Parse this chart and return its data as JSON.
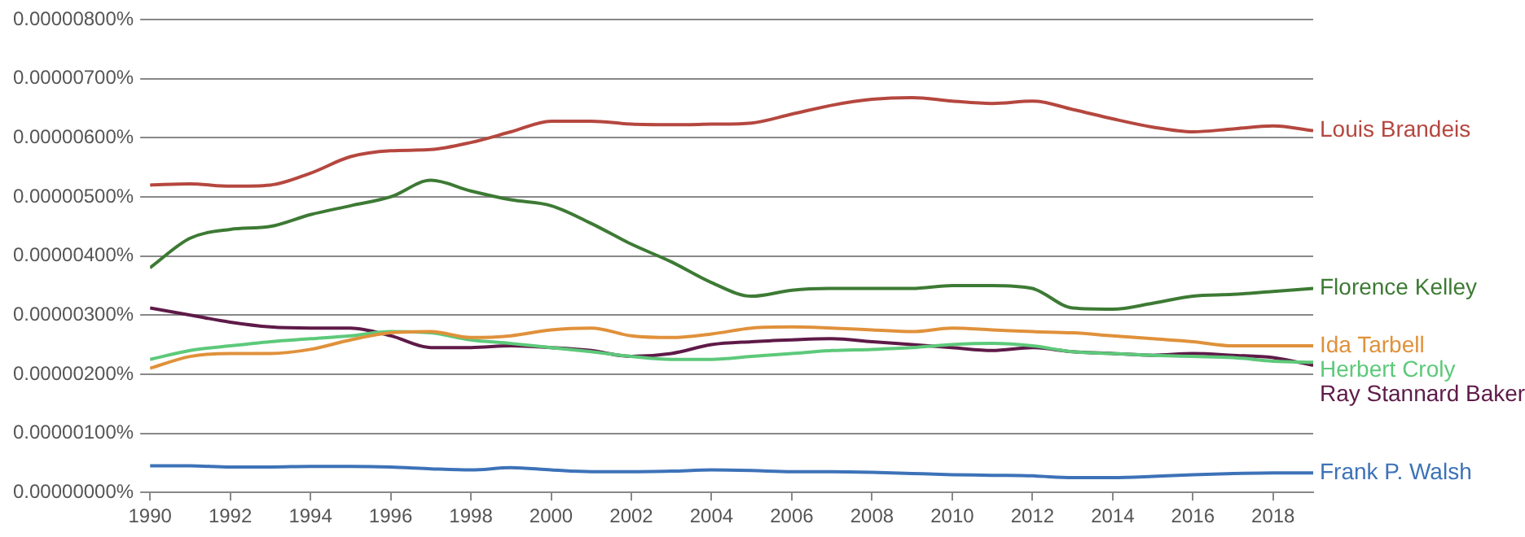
{
  "chart_data": {
    "type": "line",
    "x": [
      1990,
      1991,
      1992,
      1993,
      1994,
      1995,
      1996,
      1997,
      1998,
      1999,
      2000,
      2001,
      2002,
      2003,
      2004,
      2005,
      2006,
      2007,
      2008,
      2009,
      2010,
      2011,
      2012,
      2013,
      2014,
      2015,
      2016,
      2017,
      2018,
      2019
    ],
    "series": [
      {
        "name": "Louis Brandeis",
        "color": "#b5473f",
        "values": [
          5.2e-06,
          5.22e-06,
          5.18e-06,
          5.2e-06,
          5.4e-06,
          5.68e-06,
          5.78e-06,
          5.8e-06,
          5.92e-06,
          6.1e-06,
          6.28e-06,
          6.28e-06,
          6.23e-06,
          6.22e-06,
          6.23e-06,
          6.25e-06,
          6.4e-06,
          6.55e-06,
          6.65e-06,
          6.68e-06,
          6.62e-06,
          6.58e-06,
          6.62e-06,
          6.48e-06,
          6.32e-06,
          6.18e-06,
          6.1e-06,
          6.15e-06,
          6.2e-06,
          6.12e-06
        ]
      },
      {
        "name": "Florence Kelley",
        "color": "#3d7a34",
        "values": [
          3.8e-06,
          4.3e-06,
          4.45e-06,
          4.5e-06,
          4.7e-06,
          4.85e-06,
          5e-06,
          5.28e-06,
          5.1e-06,
          4.95e-06,
          4.85e-06,
          4.55e-06,
          4.2e-06,
          3.9e-06,
          3.55e-06,
          3.32e-06,
          3.42e-06,
          3.45e-06,
          3.45e-06,
          3.45e-06,
          3.5e-06,
          3.5e-06,
          3.45e-06,
          3.12e-06,
          3.1e-06,
          3.2e-06,
          3.32e-06,
          3.35e-06,
          3.4e-06,
          3.45e-06
        ]
      },
      {
        "name": "Ida Tarbell",
        "color": "#e0913b",
        "values": [
          2.1e-06,
          2.3e-06,
          2.35e-06,
          2.35e-06,
          2.42e-06,
          2.58e-06,
          2.7e-06,
          2.72e-06,
          2.62e-06,
          2.65e-06,
          2.75e-06,
          2.78e-06,
          2.65e-06,
          2.62e-06,
          2.68e-06,
          2.78e-06,
          2.8e-06,
          2.78e-06,
          2.75e-06,
          2.72e-06,
          2.78e-06,
          2.75e-06,
          2.72e-06,
          2.7e-06,
          2.65e-06,
          2.6e-06,
          2.55e-06,
          2.48e-06,
          2.48e-06,
          2.48e-06
        ]
      },
      {
        "name": "Herbert Croly",
        "color": "#5dc97a",
        "values": [
          2.25e-06,
          2.4e-06,
          2.48e-06,
          2.55e-06,
          2.6e-06,
          2.65e-06,
          2.72e-06,
          2.7e-06,
          2.58e-06,
          2.52e-06,
          2.45e-06,
          2.38e-06,
          2.3e-06,
          2.25e-06,
          2.25e-06,
          2.3e-06,
          2.35e-06,
          2.4e-06,
          2.42e-06,
          2.45e-06,
          2.5e-06,
          2.52e-06,
          2.48e-06,
          2.38e-06,
          2.35e-06,
          2.32e-06,
          2.3e-06,
          2.28e-06,
          2.22e-06,
          2.2e-06
        ]
      },
      {
        "name": "Ray Stannard Baker",
        "color": "#5e1a48",
        "values": [
          3.12e-06,
          3e-06,
          2.88e-06,
          2.8e-06,
          2.78e-06,
          2.78e-06,
          2.65e-06,
          2.45e-06,
          2.45e-06,
          2.48e-06,
          2.45e-06,
          2.4e-06,
          2.3e-06,
          2.35e-06,
          2.5e-06,
          2.55e-06,
          2.58e-06,
          2.6e-06,
          2.55e-06,
          2.5e-06,
          2.45e-06,
          2.4e-06,
          2.45e-06,
          2.38e-06,
          2.35e-06,
          2.32e-06,
          2.35e-06,
          2.32e-06,
          2.28e-06,
          2.15e-06
        ]
      },
      {
        "name": "Frank P. Walsh",
        "color": "#3d72b8",
        "values": [
          4.5e-07,
          4.5e-07,
          4.3e-07,
          4.3e-07,
          4.4e-07,
          4.4e-07,
          4.3e-07,
          4e-07,
          3.8e-07,
          4.2e-07,
          3.8e-07,
          3.5e-07,
          3.5e-07,
          3.6e-07,
          3.8e-07,
          3.7e-07,
          3.5e-07,
          3.5e-07,
          3.4e-07,
          3.2e-07,
          3e-07,
          2.9e-07,
          2.8e-07,
          2.5e-07,
          2.5e-07,
          2.7e-07,
          3e-07,
          3.2e-07,
          3.3e-07,
          3.3e-07
        ]
      }
    ],
    "xlim": [
      1990,
      2019
    ],
    "xticks": [
      1990,
      1992,
      1994,
      1996,
      1998,
      2000,
      2002,
      2004,
      2006,
      2008,
      2010,
      2012,
      2014,
      2016,
      2018
    ],
    "ylim": [
      0,
      8e-06
    ],
    "yticks": [
      {
        "value": 0,
        "label": "0.00000000%"
      },
      {
        "value": 1e-06,
        "label": "0.00000100%"
      },
      {
        "value": 2e-06,
        "label": "0.00000200%"
      },
      {
        "value": 3e-06,
        "label": "0.00000300%"
      },
      {
        "value": 4e-06,
        "label": "0.00000400%"
      },
      {
        "value": 5e-06,
        "label": "0.00000500%"
      },
      {
        "value": 6e-06,
        "label": "0.00000600%"
      },
      {
        "value": 7e-06,
        "label": "0.00000700%"
      },
      {
        "value": 8e-06,
        "label": "0.00000800%"
      }
    ],
    "grid": "y",
    "legend": false,
    "marker": "none",
    "line_style": "solid"
  }
}
